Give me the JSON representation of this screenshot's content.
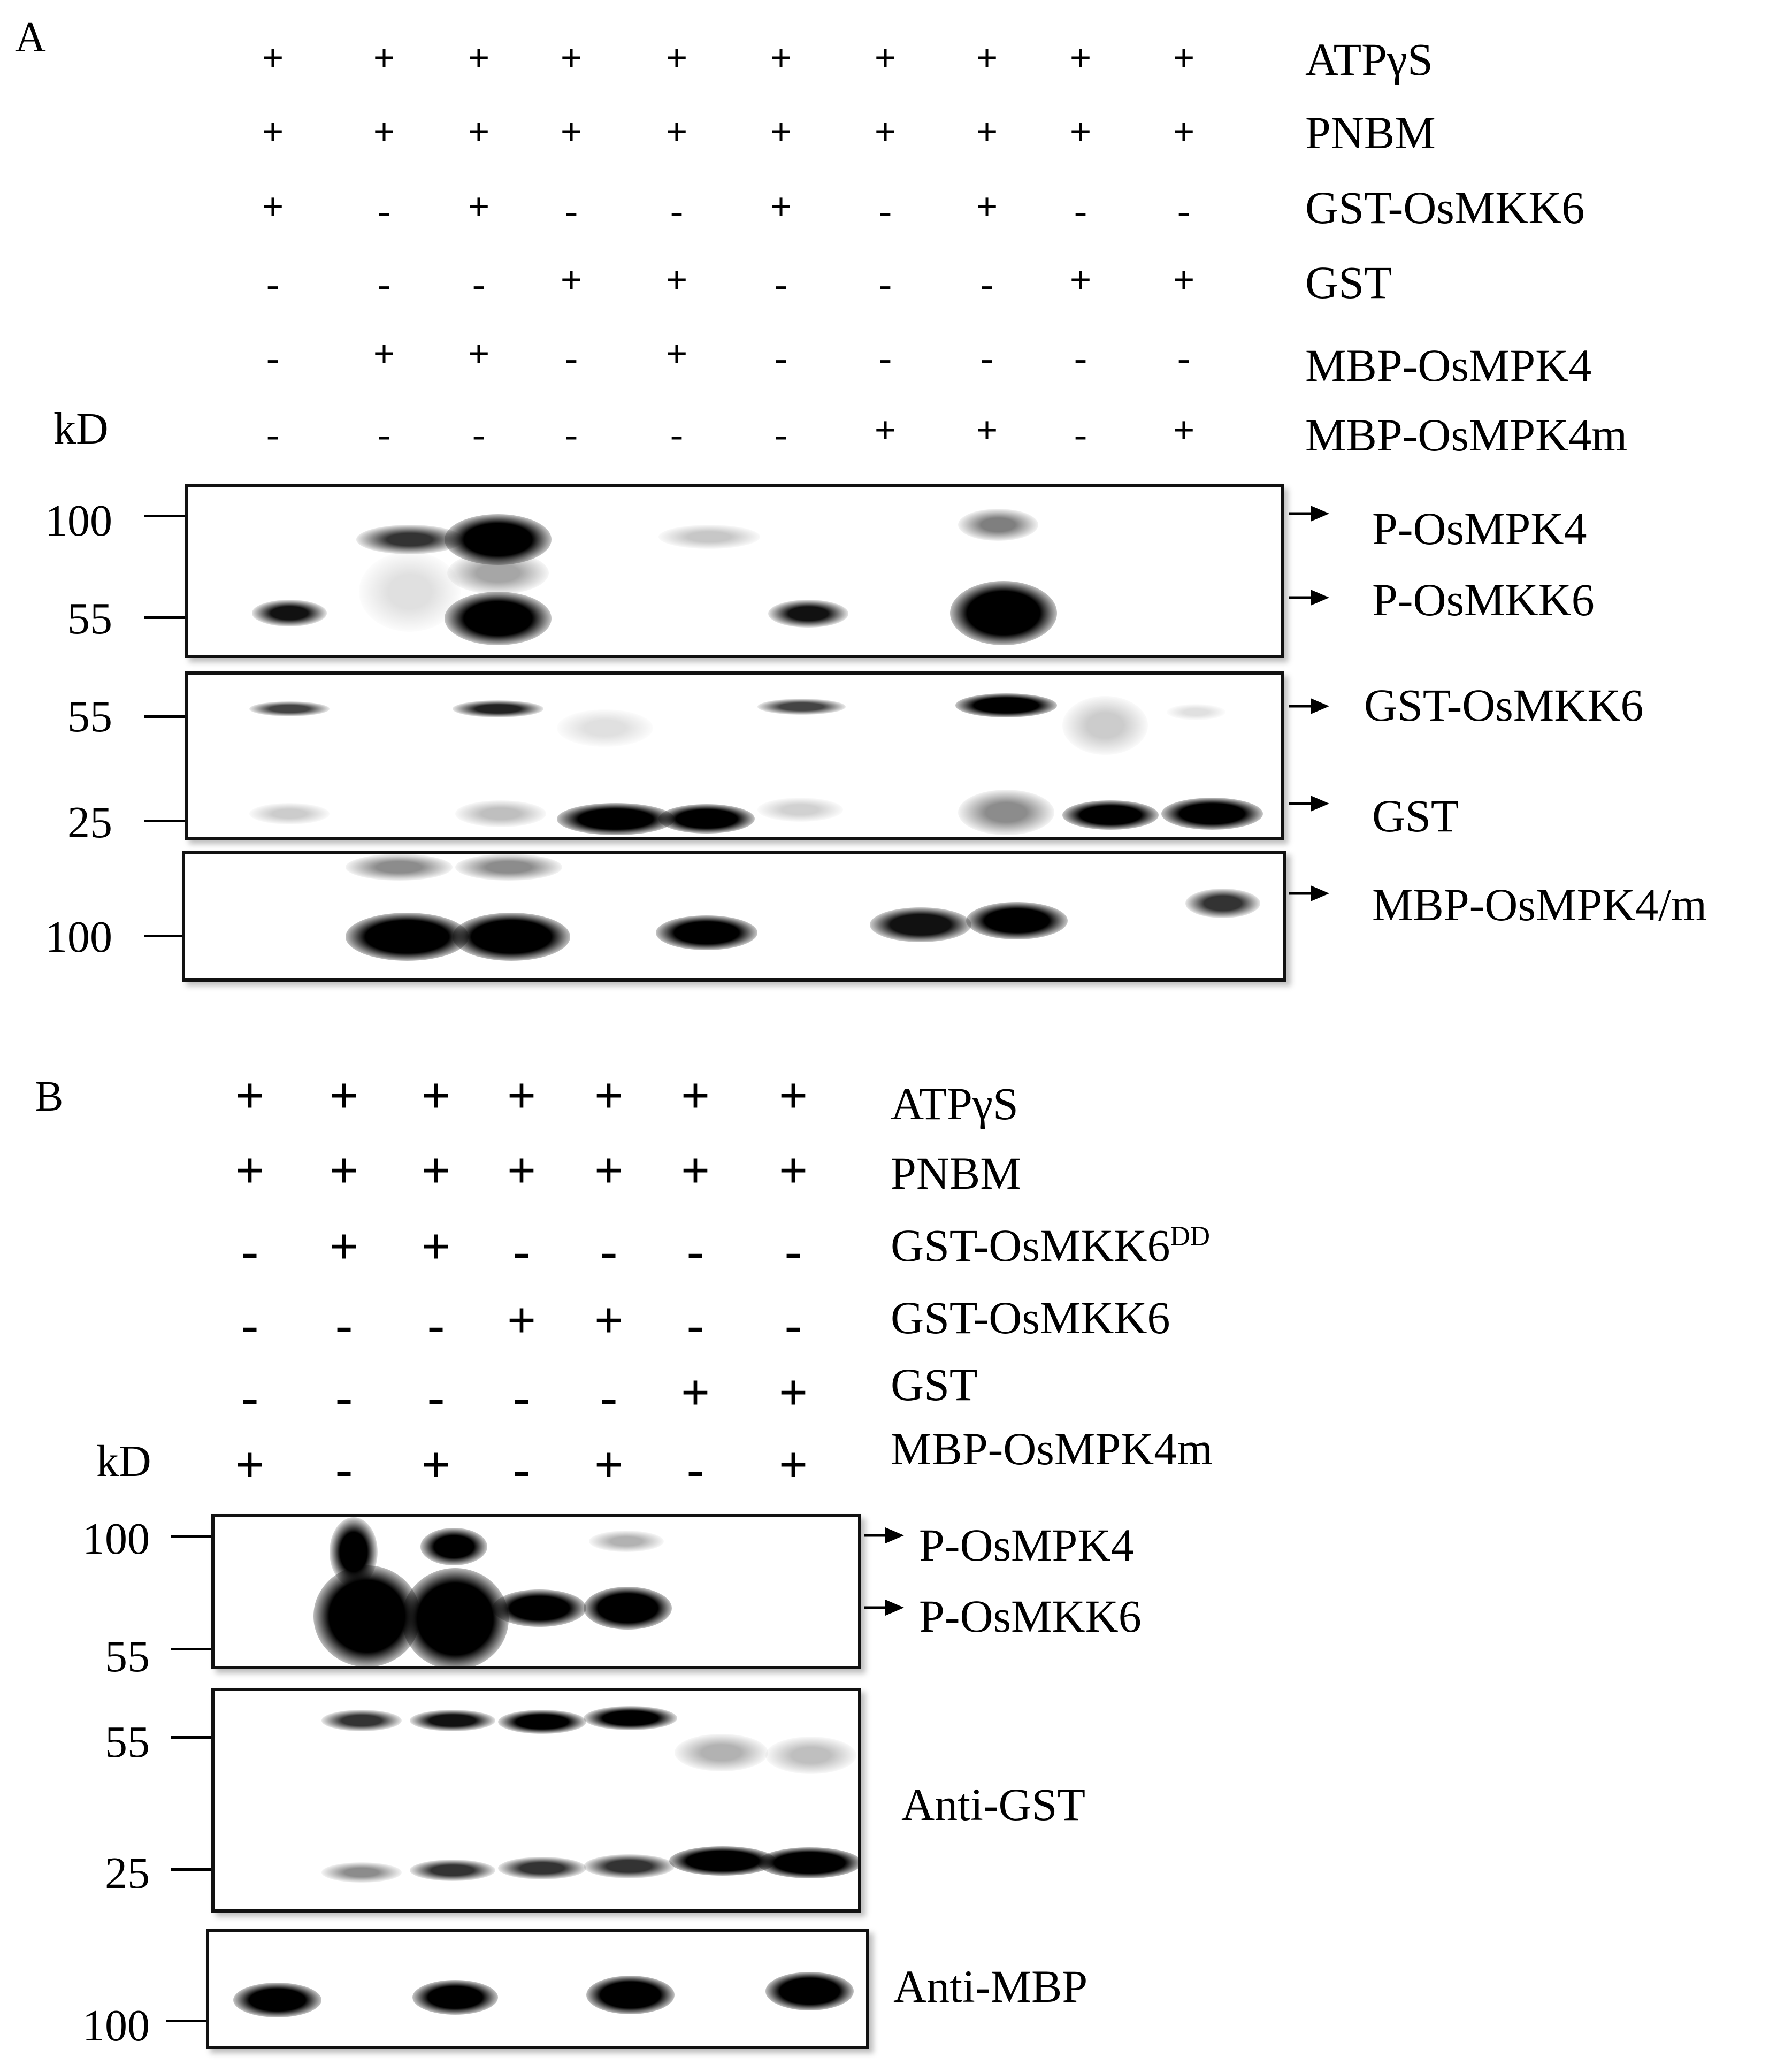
{
  "panelA": {
    "letter": "A",
    "kd": "kD",
    "conditions": [
      {
        "label": "ATPγS",
        "signs": [
          "+",
          "+",
          "+",
          "+",
          "+",
          "+",
          "+",
          "+",
          "+",
          "+"
        ]
      },
      {
        "label": "PNBM",
        "signs": [
          "+",
          "+",
          "+",
          "+",
          "+",
          "+",
          "+",
          "+",
          "+",
          "+"
        ]
      },
      {
        "label": "GST-OsMKK6",
        "signs": [
          "+",
          "-",
          "+",
          "-",
          "-",
          "+",
          "-",
          "+",
          "-",
          "-"
        ]
      },
      {
        "label": "GST",
        "signs": [
          "-",
          "-",
          "-",
          "+",
          "+",
          "-",
          "-",
          "-",
          "+",
          "+"
        ]
      },
      {
        "label": "MBP-OsMPK4",
        "signs": [
          "-",
          "+",
          "+",
          "-",
          "+",
          "-",
          "-",
          "-",
          "-",
          "-"
        ]
      },
      {
        "label": "MBP-OsMPK4m",
        "signs": [
          "-",
          "-",
          "-",
          "-",
          "-",
          "-",
          "+",
          "+",
          "-",
          "+"
        ]
      }
    ],
    "blots": [
      {
        "markers": [
          "100",
          "55"
        ],
        "annotations": [
          "P-OsMPK4",
          "P-OsMKK6"
        ]
      },
      {
        "markers": [
          "55",
          "25"
        ],
        "annotations": [
          "GST-OsMKK6",
          "GST"
        ]
      },
      {
        "markers": [
          "100"
        ],
        "annotations": [
          "MBP-OsMPK4/m"
        ]
      }
    ]
  },
  "panelB": {
    "letter": "B",
    "kd": "kD",
    "conditions": [
      {
        "label": "ATPγS",
        "signs": [
          "+",
          "+",
          "+",
          "+",
          "+",
          "+",
          "+"
        ]
      },
      {
        "label": "PNBM",
        "signs": [
          "+",
          "+",
          "+",
          "+",
          "+",
          "+",
          "+"
        ]
      },
      {
        "label": "GST-OsMKK6",
        "sup": "DD",
        "signs": [
          "-",
          "+",
          "+",
          "-",
          "-",
          "-",
          "-"
        ]
      },
      {
        "label": "GST-OsMKK6",
        "signs": [
          "-",
          "-",
          "-",
          "+",
          "+",
          "-",
          "-"
        ]
      },
      {
        "label": "GST",
        "signs": [
          "-",
          "-",
          "-",
          "-",
          "-",
          "+",
          "+"
        ]
      },
      {
        "label": "MBP-OsMPK4m",
        "signs": [
          "+",
          "-",
          "+",
          "-",
          "+",
          "-",
          "+"
        ]
      }
    ],
    "blots": [
      {
        "markers": [
          "100",
          "55"
        ],
        "annotations": [
          "P-OsMPK4",
          "P-OsMKK6"
        ]
      },
      {
        "markers": [
          "55",
          "25"
        ],
        "annotations": [
          "Anti-GST"
        ]
      },
      {
        "markers": [
          "100"
        ],
        "annotations": [
          "Anti-MBP"
        ]
      }
    ]
  }
}
